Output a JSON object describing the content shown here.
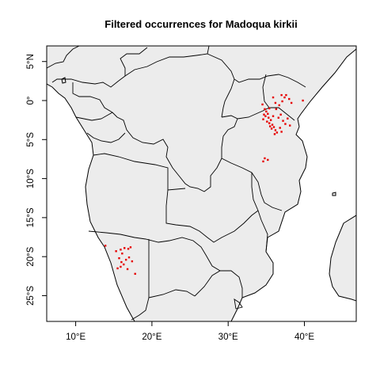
{
  "title": "Filtered occurrences for Madoqua kirkii",
  "map": {
    "x_ticks": [
      {
        "value": 10,
        "label": "10°E"
      },
      {
        "value": 20,
        "label": "20°E"
      },
      {
        "value": 30,
        "label": "30°E"
      },
      {
        "value": 40,
        "label": "40°E"
      }
    ],
    "y_ticks": [
      {
        "value": 5,
        "label": "5°N"
      },
      {
        "value": 0,
        "label": "0°"
      },
      {
        "value": -5,
        "label": "5°S"
      },
      {
        "value": -10,
        "label": "10°S"
      },
      {
        "value": -15,
        "label": "15°S"
      },
      {
        "value": -20,
        "label": "20°S"
      },
      {
        "value": -25,
        "label": "25°S"
      }
    ],
    "lon_range": [
      6.2,
      46.8
    ],
    "lat_range": [
      -28.3,
      7.0
    ],
    "colors": {
      "land": "#ececec",
      "water": "#ffffff",
      "points": "#e60000"
    }
  },
  "occurrences": [
    {
      "lon": 34.8,
      "lat": -1.1
    },
    {
      "lon": 35.0,
      "lat": -1.4
    },
    {
      "lon": 35.2,
      "lat": -1.7
    },
    {
      "lon": 34.9,
      "lat": -2.0
    },
    {
      "lon": 35.3,
      "lat": -2.2
    },
    {
      "lon": 35.6,
      "lat": -2.5
    },
    {
      "lon": 35.1,
      "lat": -2.7
    },
    {
      "lon": 35.4,
      "lat": -2.9
    },
    {
      "lon": 35.8,
      "lat": -3.1
    },
    {
      "lon": 36.0,
      "lat": -3.4
    },
    {
      "lon": 35.7,
      "lat": -3.6
    },
    {
      "lon": 36.2,
      "lat": -3.8
    },
    {
      "lon": 36.4,
      "lat": -4.1
    },
    {
      "lon": 36.1,
      "lat": -4.3
    },
    {
      "lon": 35.5,
      "lat": -3.3
    },
    {
      "lon": 34.6,
      "lat": -2.4
    },
    {
      "lon": 34.7,
      "lat": -1.8
    },
    {
      "lon": 35.9,
      "lat": -2.0
    },
    {
      "lon": 36.6,
      "lat": -2.2
    },
    {
      "lon": 36.9,
      "lat": -1.8
    },
    {
      "lon": 37.2,
      "lat": -2.6
    },
    {
      "lon": 37.5,
      "lat": -3.0
    },
    {
      "lon": 37.8,
      "lat": -2.3
    },
    {
      "lon": 38.1,
      "lat": -3.2
    },
    {
      "lon": 36.8,
      "lat": -3.5
    },
    {
      "lon": 37.0,
      "lat": -4.0
    },
    {
      "lon": 36.3,
      "lat": -1.1
    },
    {
      "lon": 36.7,
      "lat": -0.6
    },
    {
      "lon": 37.1,
      "lat": -0.1
    },
    {
      "lon": 37.4,
      "lat": 0.4
    },
    {
      "lon": 37.0,
      "lat": 0.7
    },
    {
      "lon": 37.6,
      "lat": 0.7
    },
    {
      "lon": 38.0,
      "lat": 0.2
    },
    {
      "lon": 38.3,
      "lat": -0.3
    },
    {
      "lon": 35.9,
      "lat": 0.4
    },
    {
      "lon": 36.2,
      "lat": -0.3
    },
    {
      "lon": 34.5,
      "lat": -0.5
    },
    {
      "lon": 39.8,
      "lat": 0.0
    },
    {
      "lon": 35.4,
      "lat": -1.0
    },
    {
      "lon": 34.8,
      "lat": -7.4
    },
    {
      "lon": 34.6,
      "lat": -7.8
    },
    {
      "lon": 35.2,
      "lat": -7.6
    },
    {
      "lon": 13.9,
      "lat": -18.6
    },
    {
      "lon": 15.3,
      "lat": -19.3
    },
    {
      "lon": 15.9,
      "lat": -19.1
    },
    {
      "lon": 16.4,
      "lat": -18.9
    },
    {
      "lon": 16.9,
      "lat": -19.0
    },
    {
      "lon": 17.2,
      "lat": -18.8
    },
    {
      "lon": 16.1,
      "lat": -19.6
    },
    {
      "lon": 15.7,
      "lat": -20.2
    },
    {
      "lon": 16.6,
      "lat": -20.4
    },
    {
      "lon": 17.0,
      "lat": -20.1
    },
    {
      "lon": 17.4,
      "lat": -20.6
    },
    {
      "lon": 16.3,
      "lat": -21.0
    },
    {
      "lon": 15.9,
      "lat": -21.3
    },
    {
      "lon": 16.8,
      "lat": -21.6
    },
    {
      "lon": 17.8,
      "lat": -22.2
    },
    {
      "lon": 15.5,
      "lat": -21.5
    },
    {
      "lon": 16.0,
      "lat": -20.7
    }
  ]
}
